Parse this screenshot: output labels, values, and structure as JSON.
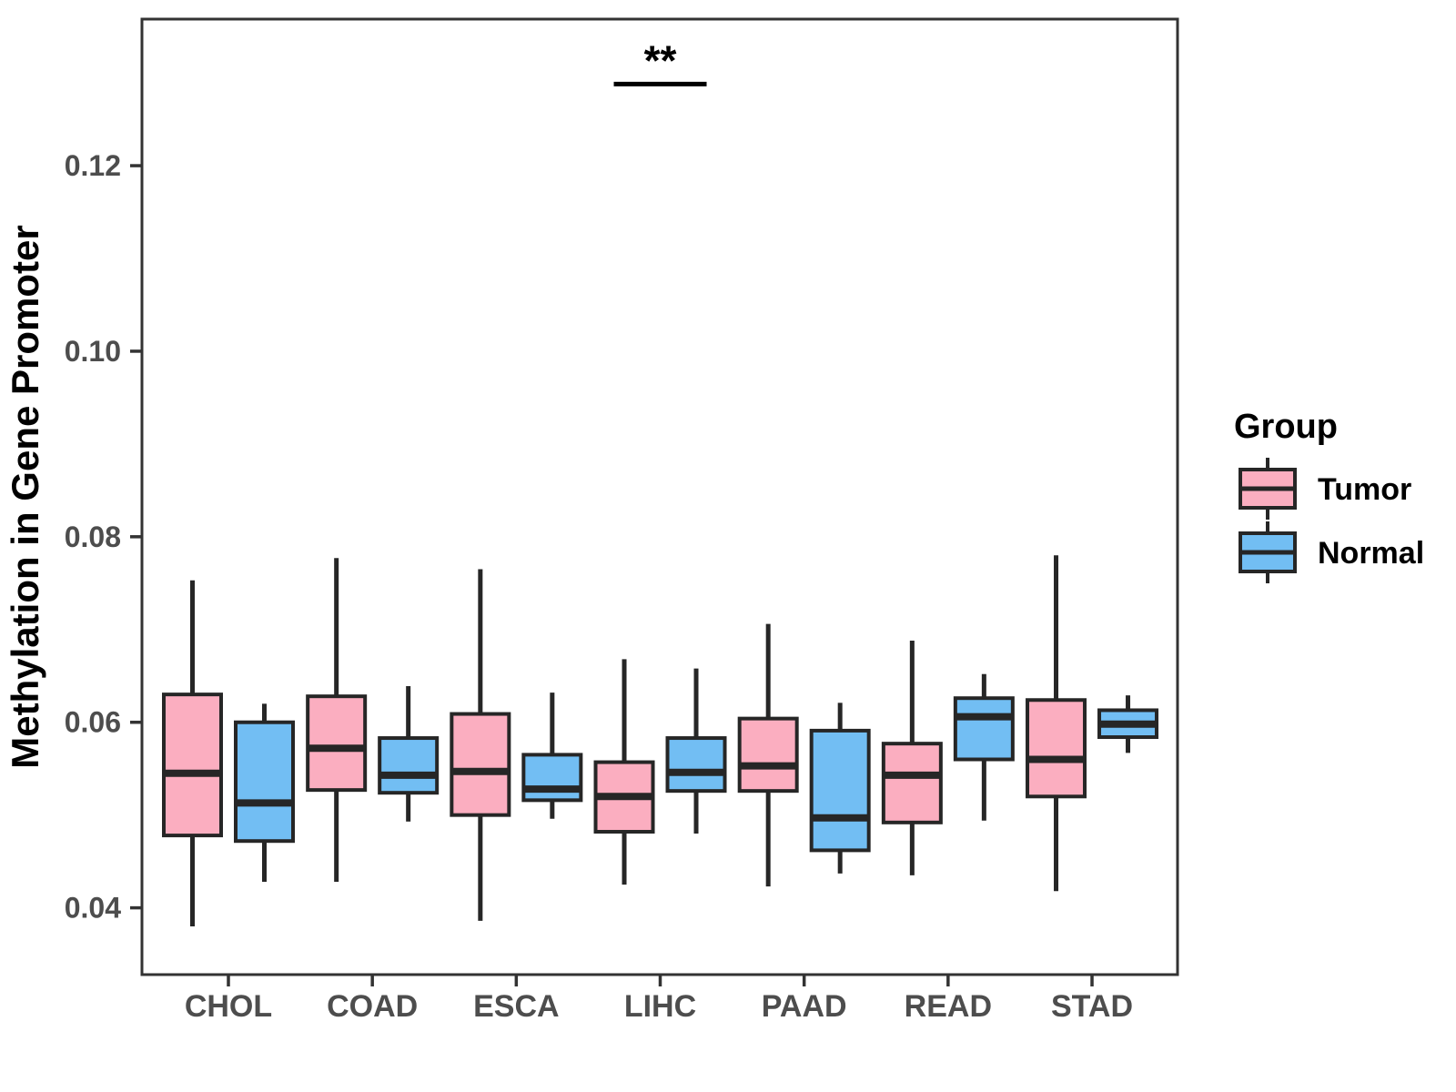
{
  "chart_data": {
    "type": "boxplot",
    "title": "",
    "xlabel": "",
    "ylabel": "Methylation in Gene Promoter",
    "categories": [
      "CHOL",
      "COAD",
      "ESCA",
      "LIHC",
      "PAAD",
      "READ",
      "STAD"
    ],
    "yticks": [
      {
        "label": "0.04",
        "value": 0.04
      },
      {
        "label": "0.06",
        "value": 0.06
      },
      {
        "label": "0.08",
        "value": 0.08
      },
      {
        "label": "0.10",
        "value": 0.1
      },
      {
        "label": "0.12",
        "value": 0.12
      }
    ],
    "ylim": [
      0.0328,
      0.1358
    ],
    "grid": "off",
    "legend": {
      "title": "Group",
      "position": "right",
      "entries": [
        {
          "label": "Tumor",
          "color": "#FBAEC0"
        },
        {
          "label": "Normal",
          "color": "#72BEF3"
        }
      ]
    },
    "significance": {
      "category": "LIHC",
      "label": "**",
      "bar_value": 0.1288
    },
    "colors": {
      "tumor_fill": "#FBAEC0",
      "normal_fill": "#72BEF3",
      "box_stroke": "#262626",
      "axis_stroke": "#333333",
      "tick_text": "#4d4d4d"
    },
    "series": [
      {
        "name": "Tumor",
        "color": "#FBAEC0",
        "boxes": [
          {
            "category": "CHOL",
            "min": 0.038,
            "q1": 0.0478,
            "median": 0.0545,
            "q3": 0.063,
            "max": 0.0753
          },
          {
            "category": "COAD",
            "min": 0.0428,
            "q1": 0.0527,
            "median": 0.0572,
            "q3": 0.0628,
            "max": 0.0777
          },
          {
            "category": "ESCA",
            "min": 0.0386,
            "q1": 0.05,
            "median": 0.0547,
            "q3": 0.0609,
            "max": 0.0765
          },
          {
            "category": "LIHC",
            "min": 0.0425,
            "q1": 0.0482,
            "median": 0.052,
            "q3": 0.0557,
            "max": 0.0668
          },
          {
            "category": "PAAD",
            "min": 0.0423,
            "q1": 0.0526,
            "median": 0.0553,
            "q3": 0.0604,
            "max": 0.0706
          },
          {
            "category": "READ",
            "min": 0.0435,
            "q1": 0.0492,
            "median": 0.0543,
            "q3": 0.0577,
            "max": 0.0688
          },
          {
            "category": "STAD",
            "min": 0.0418,
            "q1": 0.052,
            "median": 0.056,
            "q3": 0.0624,
            "max": 0.078
          }
        ]
      },
      {
        "name": "Normal",
        "color": "#72BEF3",
        "boxes": [
          {
            "category": "CHOL",
            "min": 0.0428,
            "q1": 0.0472,
            "median": 0.0513,
            "q3": 0.06,
            "max": 0.062
          },
          {
            "category": "COAD",
            "min": 0.0493,
            "q1": 0.0524,
            "median": 0.0543,
            "q3": 0.0583,
            "max": 0.0639
          },
          {
            "category": "ESCA",
            "min": 0.0496,
            "q1": 0.0516,
            "median": 0.0528,
            "q3": 0.0565,
            "max": 0.0632
          },
          {
            "category": "LIHC",
            "min": 0.048,
            "q1": 0.0526,
            "median": 0.0546,
            "q3": 0.0583,
            "max": 0.0658
          },
          {
            "category": "PAAD",
            "min": 0.0437,
            "q1": 0.0462,
            "median": 0.0497,
            "q3": 0.0591,
            "max": 0.0621
          },
          {
            "category": "READ",
            "min": 0.0494,
            "q1": 0.056,
            "median": 0.0606,
            "q3": 0.0626,
            "max": 0.0652
          },
          {
            "category": "STAD",
            "min": 0.0567,
            "q1": 0.0584,
            "median": 0.0598,
            "q3": 0.0613,
            "max": 0.0629
          }
        ]
      }
    ]
  }
}
